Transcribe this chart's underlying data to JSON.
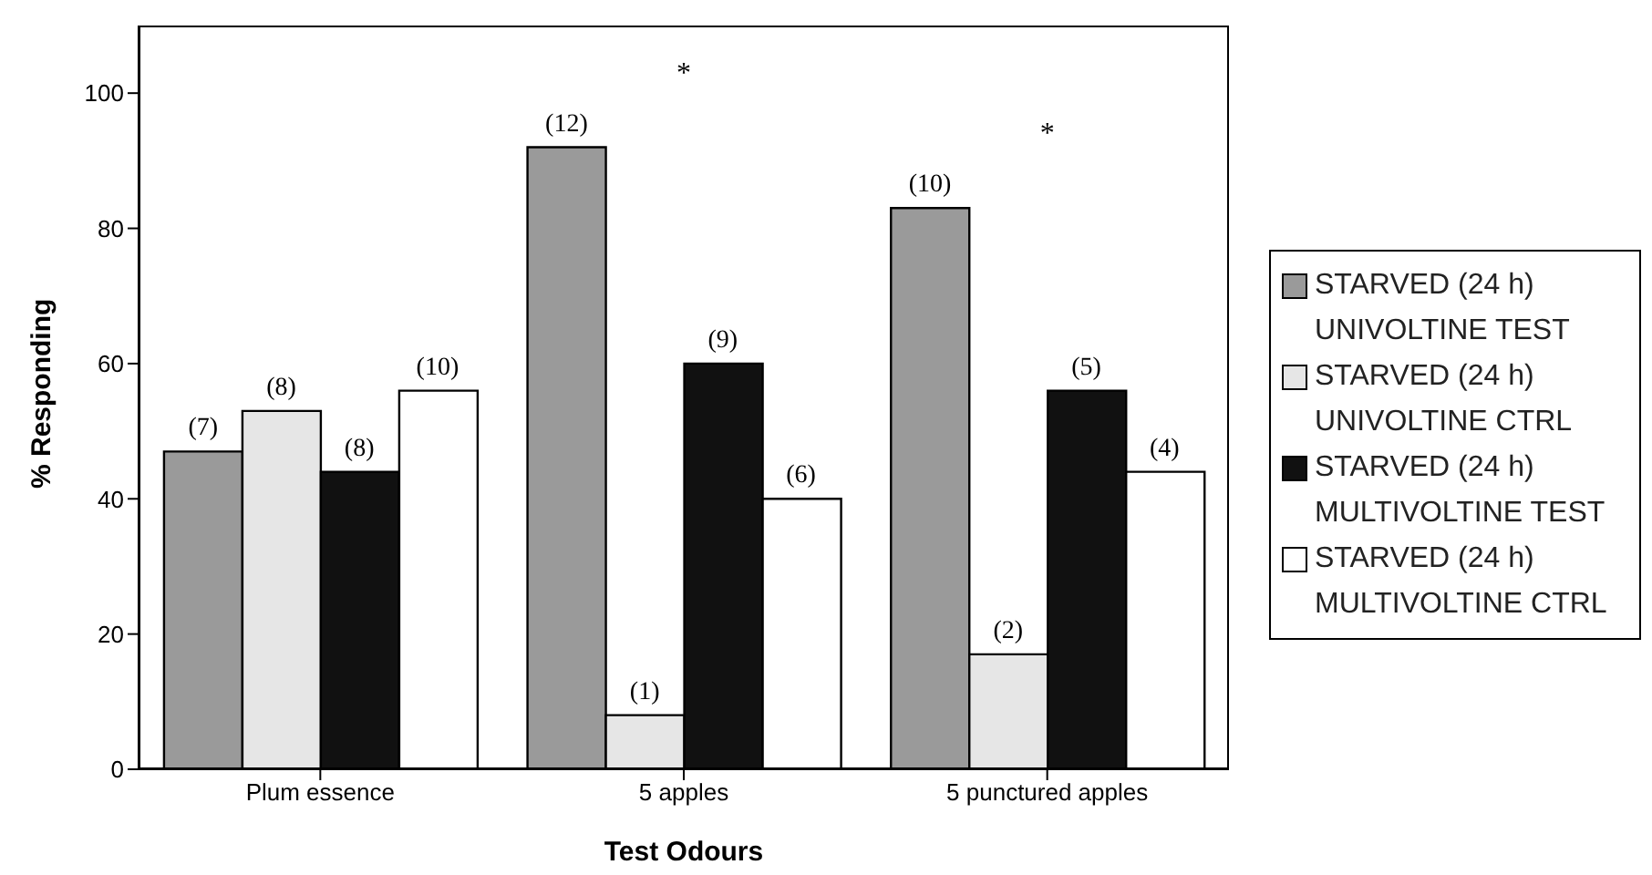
{
  "chart_data": {
    "type": "bar",
    "xlabel": "Test Odours",
    "ylabel": "% Responding",
    "categories": [
      "Plum essence",
      "5 apples",
      "5 punctured apples"
    ],
    "series": [
      {
        "name": "STARVED (24 h) UNIVOLTINE TEST",
        "color": "#9a9a9a",
        "values": [
          47,
          92,
          83
        ]
      },
      {
        "name": "STARVED (24 h) UNIVOLTINE CTRL",
        "color": "#e6e6e6",
        "values": [
          53,
          8,
          17
        ]
      },
      {
        "name": "STARVED (24 h) MULTIVOLTINE TEST",
        "color": "#111111",
        "values": [
          44,
          60,
          56
        ]
      },
      {
        "name": "STARVED (24 h) MULTIVOLTINE CTRL",
        "color": "#ffffff",
        "values": [
          56,
          40,
          44
        ]
      }
    ],
    "ylim": [
      0,
      110
    ],
    "yticks": [
      0,
      20,
      40,
      60,
      80,
      100
    ],
    "grid": false,
    "legend": "right",
    "annotations": [
      "(7)",
      "(8)",
      "(8)",
      "(10)",
      "(12)",
      "(1)",
      "(9)",
      "(6)",
      "(10)",
      "(2)",
      "(5)",
      "(4)",
      "*",
      "*"
    ]
  }
}
